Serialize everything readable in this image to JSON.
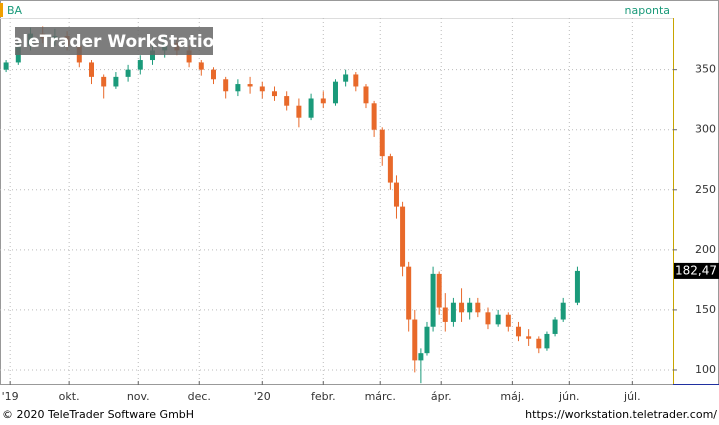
{
  "chart_data": {
    "type": "candlestick",
    "title": "BA",
    "subtitle": "naponta",
    "watermark": "TeleTrader WorkStation",
    "footer_left": "© 2020 TeleTrader Software GmbH",
    "footer_right": "https://workstation.teletrader.com/",
    "grid": true,
    "up_color": "#1a9a7a",
    "down_color": "#e8692a",
    "xlim": [
      0,
      331
    ],
    "ylim": [
      87.5,
      393
    ],
    "xticks": [
      {
        "value": 5,
        "label": "'19"
      },
      {
        "value": 34,
        "label": "okt."
      },
      {
        "value": 68,
        "label": "nov."
      },
      {
        "value": 98,
        "label": "dec."
      },
      {
        "value": 129,
        "label": "'20"
      },
      {
        "value": 159,
        "label": "febr."
      },
      {
        "value": 187,
        "label": "márc."
      },
      {
        "value": 217,
        "label": "ápr."
      },
      {
        "value": 252,
        "label": "máj."
      },
      {
        "value": 280,
        "label": "jún."
      },
      {
        "value": 311,
        "label": "júl."
      }
    ],
    "yticks": [
      100,
      150,
      200,
      250,
      300,
      350
    ],
    "series": [
      {
        "name": "BA",
        "x": [
          3,
          9,
          15,
          21,
          27,
          33,
          39,
          45,
          51,
          57,
          63,
          69,
          75,
          81,
          87,
          93,
          99,
          105,
          111,
          117,
          123,
          129,
          135,
          141,
          147,
          153,
          159,
          165,
          170,
          175,
          180,
          184,
          188,
          192,
          195,
          198,
          201,
          204,
          207,
          210,
          213,
          216,
          219,
          223,
          227,
          231,
          235,
          240,
          245,
          250,
          255,
          260,
          265,
          269,
          273,
          277,
          284
        ],
        "open": [
          350,
          356,
          370,
          380,
          376,
          378,
          370,
          356,
          344,
          336,
          344,
          350,
          358,
          366,
          372,
          366,
          356,
          350,
          342,
          332,
          338,
          336,
          332,
          328,
          320,
          310,
          326,
          322,
          340,
          346,
          336,
          322,
          300,
          278,
          256,
          236,
          186,
          142,
          108,
          114,
          136,
          180,
          152,
          140,
          156,
          148,
          156,
          148,
          138,
          146,
          136,
          128,
          126,
          118,
          130,
          142,
          156
        ],
        "high": [
          358,
          372,
          385,
          386,
          384,
          382,
          374,
          358,
          346,
          348,
          354,
          362,
          370,
          378,
          376,
          370,
          358,
          352,
          344,
          342,
          344,
          340,
          336,
          332,
          326,
          330,
          332,
          342,
          350,
          348,
          338,
          324,
          302,
          280,
          262,
          240,
          190,
          150,
          118,
          140,
          186,
          182,
          164,
          160,
          168,
          160,
          160,
          152,
          150,
          148,
          140,
          134,
          128,
          132,
          144,
          160,
          186
        ],
        "low": [
          348,
          354,
          366,
          372,
          370,
          366,
          352,
          338,
          326,
          334,
          340,
          346,
          354,
          360,
          362,
          352,
          345,
          338,
          326,
          328,
          330,
          326,
          324,
          316,
          302,
          308,
          318,
          320,
          336,
          332,
          318,
          294,
          270,
          250,
          226,
          178,
          132,
          98,
          89,
          112,
          132,
          146,
          132,
          136,
          140,
          142,
          144,
          134,
          136,
          132,
          124,
          120,
          114,
          116,
          128,
          140,
          154
        ],
        "close": [
          356,
          370,
          380,
          376,
          378,
          370,
          356,
          344,
          336,
          344,
          350,
          358,
          366,
          372,
          366,
          356,
          350,
          342,
          332,
          338,
          336,
          332,
          328,
          320,
          310,
          326,
          322,
          340,
          346,
          336,
          322,
          300,
          278,
          256,
          236,
          186,
          142,
          108,
          114,
          136,
          180,
          152,
          140,
          156,
          148,
          156,
          148,
          138,
          146,
          136,
          128,
          126,
          118,
          130,
          142,
          156,
          182.47
        ],
        "last_value_label": "182,47"
      }
    ]
  }
}
